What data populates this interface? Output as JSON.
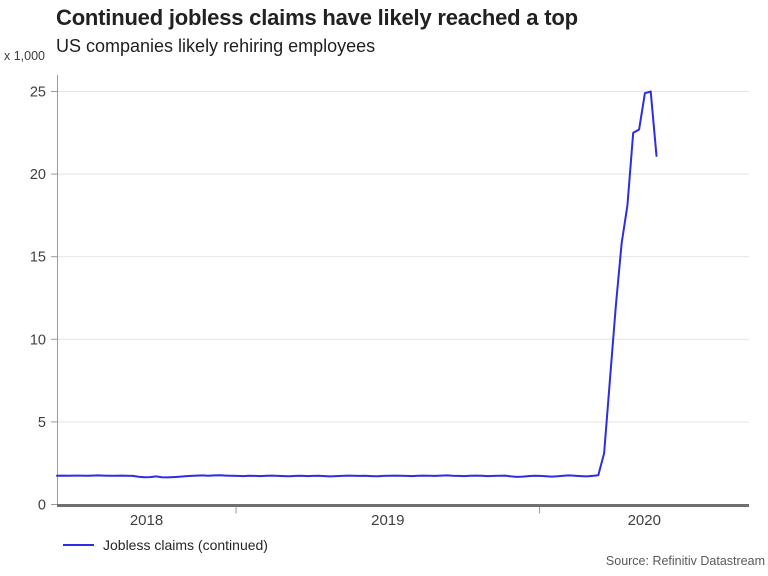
{
  "header": {
    "title": "Continued jobless claims have likely reached a top",
    "subtitle": "US companies likely rehiring employees"
  },
  "legend": {
    "label": "Jobless claims (continued)"
  },
  "footer": {
    "source": "Source: Refinitiv Datastream"
  },
  "colors": {
    "line": "#2d2de1",
    "grid": "#e3e3e3",
    "axis": "#9b9b9b",
    "baseline": "#6f6f6f",
    "title_text": "#212121",
    "tick_text": "#404040",
    "source_text": "#595959"
  },
  "chart_data": {
    "type": "line",
    "title": "Continued jobless claims have likely reached a top",
    "subtitle": "US companies likely rehiring employees",
    "unit_label": "x 1,000",
    "xlabel": "",
    "ylabel": "",
    "grid": "horizontal",
    "legend_position": "bottom-left",
    "y_ticks": [
      0,
      5,
      10,
      15,
      20,
      25
    ],
    "ylim": [
      0,
      26
    ],
    "xlim": [
      2018.41,
      2020.69
    ],
    "x_year_boundaries": [
      2019,
      2020
    ],
    "x_tick_labels": [
      "2018",
      "2019",
      "2020"
    ],
    "series": [
      {
        "name": "Jobless claims (continued)",
        "x_start": 2018.41,
        "x_step": 0.019178,
        "values": [
          1.74,
          1.75,
          1.74,
          1.75,
          1.75,
          1.74,
          1.75,
          1.76,
          1.75,
          1.74,
          1.74,
          1.75,
          1.74,
          1.73,
          1.68,
          1.65,
          1.66,
          1.7,
          1.65,
          1.64,
          1.66,
          1.68,
          1.71,
          1.73,
          1.75,
          1.76,
          1.74,
          1.76,
          1.77,
          1.75,
          1.74,
          1.73,
          1.72,
          1.74,
          1.73,
          1.72,
          1.74,
          1.75,
          1.73,
          1.72,
          1.71,
          1.73,
          1.74,
          1.72,
          1.73,
          1.74,
          1.72,
          1.7,
          1.72,
          1.73,
          1.75,
          1.74,
          1.73,
          1.74,
          1.72,
          1.71,
          1.73,
          1.74,
          1.75,
          1.74,
          1.73,
          1.72,
          1.74,
          1.75,
          1.74,
          1.73,
          1.75,
          1.76,
          1.74,
          1.73,
          1.72,
          1.74,
          1.75,
          1.74,
          1.72,
          1.73,
          1.74,
          1.75,
          1.7,
          1.67,
          1.69,
          1.72,
          1.74,
          1.73,
          1.71,
          1.69,
          1.71,
          1.74,
          1.76,
          1.74,
          1.72,
          1.7,
          1.73,
          1.77,
          3.1,
          7.6,
          12.0,
          15.8,
          18.1,
          22.5,
          22.7,
          24.9,
          25.0,
          21.1
        ]
      }
    ]
  }
}
